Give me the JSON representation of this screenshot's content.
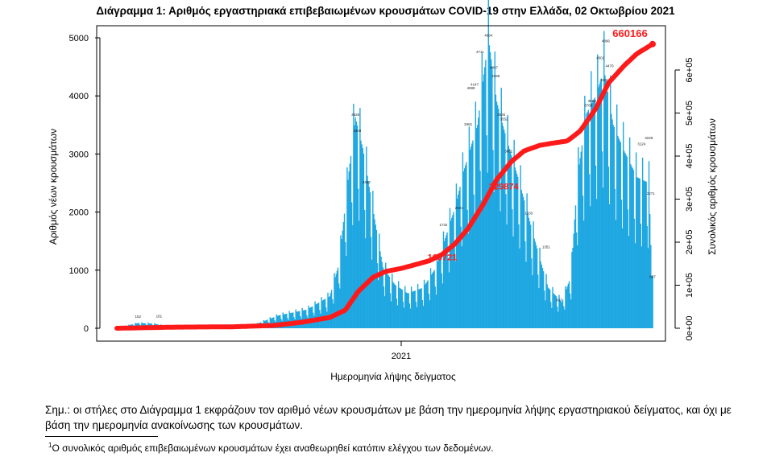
{
  "chart_data": {
    "type": "bar+line",
    "title": "Διάγραμμα 1: Αριθμός εργαστηριακά επιβεβαιωμένων κρουσμάτων COVID-19 στην Ελλάδα, 02 Οκτωβρίου 2021",
    "xlabel": "Ημερομηνία λήψης δείγματος",
    "ylabel": "Αριθμός νέων κρουσμάτων",
    "y2label": "Συνολικός αριθμός κρουσμάτων",
    "ylim": [
      0,
      5000
    ],
    "yticks": [
      0,
      1000,
      2000,
      3000,
      4000,
      5000
    ],
    "y2lim": [
      0,
      600000
    ],
    "y2ticks": [
      0,
      100000,
      200000,
      300000,
      400000,
      500000,
      600000
    ],
    "y2ticklabels": [
      "0e+00",
      "1e+05",
      "2e+05",
      "3e+05",
      "4e+05",
      "5e+05",
      "6e+05"
    ],
    "x_date_range": [
      "2020-02-26",
      "2021-10-02"
    ],
    "xticks": [
      {
        "date": "2021-01-01",
        "label": "2021"
      }
    ],
    "bar_color": "#1ea7e1",
    "line_color": "#ff1a1a",
    "daily_new_cases_anchors": [
      {
        "date": "2020-02-26",
        "value": 5
      },
      {
        "date": "2020-03-20",
        "value": 90
      },
      {
        "date": "2020-04-05",
        "value": 80
      },
      {
        "date": "2020-05-01",
        "value": 15
      },
      {
        "date": "2020-06-15",
        "value": 20
      },
      {
        "date": "2020-07-25",
        "value": 60
      },
      {
        "date": "2020-08-20",
        "value": 220
      },
      {
        "date": "2020-09-20",
        "value": 320
      },
      {
        "date": "2020-10-15",
        "value": 550
      },
      {
        "date": "2020-10-25",
        "value": 1100
      },
      {
        "date": "2020-11-05",
        "value": 2700
      },
      {
        "date": "2020-11-12",
        "value": 3626
      },
      {
        "date": "2020-11-20",
        "value": 3100
      },
      {
        "date": "2020-11-30",
        "value": 2150
      },
      {
        "date": "2020-12-12",
        "value": 1050
      },
      {
        "date": "2020-12-25",
        "value": 750
      },
      {
        "date": "2021-01-08",
        "value": 600
      },
      {
        "date": "2021-01-25",
        "value": 700
      },
      {
        "date": "2021-02-08",
        "value": 1050
      },
      {
        "date": "2021-02-20",
        "value": 1650
      },
      {
        "date": "2021-03-01",
        "value": 2100
      },
      {
        "date": "2021-03-10",
        "value": 2700
      },
      {
        "date": "2021-03-25",
        "value": 3500
      },
      {
        "date": "2021-04-06",
        "value": 4994
      },
      {
        "date": "2021-04-15",
        "value": 3900
      },
      {
        "date": "2021-04-25",
        "value": 3300
      },
      {
        "date": "2021-05-10",
        "value": 2500
      },
      {
        "date": "2021-05-25",
        "value": 1600
      },
      {
        "date": "2021-06-10",
        "value": 700
      },
      {
        "date": "2021-06-25",
        "value": 450
      },
      {
        "date": "2021-07-05",
        "value": 900
      },
      {
        "date": "2021-07-12",
        "value": 2600
      },
      {
        "date": "2021-07-22",
        "value": 3700
      },
      {
        "date": "2021-08-01",
        "value": 4000
      },
      {
        "date": "2021-08-10",
        "value": 4450
      },
      {
        "date": "2021-08-20",
        "value": 3500
      },
      {
        "date": "2021-09-01",
        "value": 3050
      },
      {
        "date": "2021-09-15",
        "value": 2600
      },
      {
        "date": "2021-09-28",
        "value": 2500
      },
      {
        "date": "2021-10-01",
        "value": 900
      }
    ],
    "bar_value_labels": [
      {
        "date": "2020-11-12",
        "value": 3626
      },
      {
        "date": "2020-11-14",
        "value": 3349
      },
      {
        "date": "2020-11-24",
        "value": 2462
      },
      {
        "date": "2021-03-05",
        "value": 2021
      },
      {
        "date": "2021-03-28",
        "value": 4711
      },
      {
        "date": "2021-04-06",
        "value": 4994
      },
      {
        "date": "2021-04-12",
        "value": 4437
      },
      {
        "date": "2021-04-14",
        "value": 4296
      },
      {
        "date": "2021-03-22",
        "value": 4147
      },
      {
        "date": "2021-03-18",
        "value": 4089
      },
      {
        "date": "2021-04-20",
        "value": 3626
      },
      {
        "date": "2021-04-23",
        "value": 3552
      },
      {
        "date": "2021-03-15",
        "value": 3461
      },
      {
        "date": "2021-04-28",
        "value": 3002
      },
      {
        "date": "2021-07-28",
        "value": 3863
      },
      {
        "date": "2021-07-24",
        "value": 3788
      },
      {
        "date": "2021-08-06",
        "value": 4602
      },
      {
        "date": "2021-08-12",
        "value": 4896
      },
      {
        "date": "2021-08-16",
        "value": 4470
      },
      {
        "date": "2021-08-10",
        "value": 4226
      },
      {
        "date": "2021-09-28",
        "value": 3229
      },
      {
        "date": "2021-09-20",
        "value": 3124
      },
      {
        "date": "2021-02-16",
        "value": 1732
      },
      {
        "date": "2021-05-20",
        "value": 1933
      },
      {
        "date": "2021-06-08",
        "value": 1351
      },
      {
        "date": "2021-06-22",
        "value": 437
      },
      {
        "date": "2021-09-30",
        "value": 2271
      },
      {
        "date": "2021-10-02",
        "value": 837
      },
      {
        "date": "2020-03-20",
        "value": 152
      },
      {
        "date": "2020-04-12",
        "value": 161
      }
    ],
    "cumulative_anchors": [
      {
        "date": "2020-02-26",
        "value": 1
      },
      {
        "date": "2020-05-01",
        "value": 2600
      },
      {
        "date": "2020-07-01",
        "value": 3400
      },
      {
        "date": "2020-08-15",
        "value": 6500
      },
      {
        "date": "2020-09-15",
        "value": 14000
      },
      {
        "date": "2020-10-15",
        "value": 25000
      },
      {
        "date": "2020-11-01",
        "value": 42000
      },
      {
        "date": "2020-11-15",
        "value": 85000
      },
      {
        "date": "2020-12-01",
        "value": 118000
      },
      {
        "date": "2020-12-15",
        "value": 132000
      },
      {
        "date": "2021-01-01",
        "value": 139000
      },
      {
        "date": "2021-01-15",
        "value": 147000
      },
      {
        "date": "2021-02-01",
        "value": 157000
      },
      {
        "date": "2021-02-15",
        "value": 172000
      },
      {
        "date": "2021-03-01",
        "value": 197000
      },
      {
        "date": "2021-03-15",
        "value": 232000
      },
      {
        "date": "2021-04-01",
        "value": 290000
      },
      {
        "date": "2021-04-15",
        "value": 345000
      },
      {
        "date": "2021-05-01",
        "value": 387000
      },
      {
        "date": "2021-05-15",
        "value": 412000
      },
      {
        "date": "2021-06-01",
        "value": 425000
      },
      {
        "date": "2021-06-15",
        "value": 430000
      },
      {
        "date": "2021-07-01",
        "value": 435000
      },
      {
        "date": "2021-07-15",
        "value": 458000
      },
      {
        "date": "2021-08-01",
        "value": 510000
      },
      {
        "date": "2021-08-15",
        "value": 570000
      },
      {
        "date": "2021-09-01",
        "value": 610000
      },
      {
        "date": "2021-09-15",
        "value": 638000
      },
      {
        "date": "2021-10-02",
        "value": 660166
      }
    ],
    "cumulative_markers": [
      {
        "date": "2021-02-20",
        "value": 165721,
        "label": "165721"
      },
      {
        "date": "2021-04-28",
        "value": 329874,
        "label": "329874"
      },
      {
        "date": "2021-10-02",
        "value": 660166,
        "label": "660166"
      }
    ]
  },
  "note": "Σημ.: οι στήλες στο Διάγραμμα 1 εκφράζουν τον αριθμό νέων κρουσμάτων με βάση την ημερομηνία λήψης εργαστηριακού δείγματος, και όχι με βάση την ημερομηνία ανακοίνωσης των κρουσμάτων.",
  "footnote": {
    "marker": "1",
    "text": "Ο συνολικός αριθμός επιβεβαιωμένων κρουσμάτων έχει αναθεωρηθεί κατόπιν ελέγχου των δεδομένων."
  }
}
